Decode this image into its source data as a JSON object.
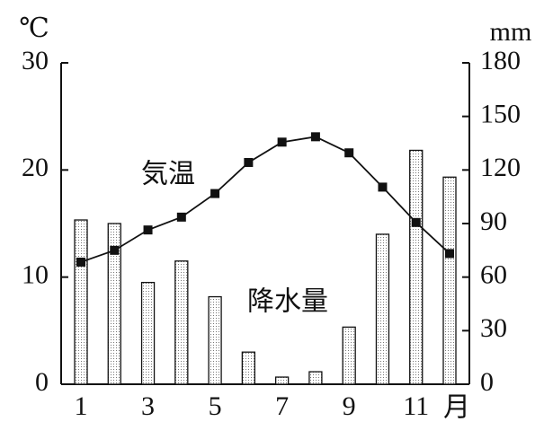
{
  "chart_data": {
    "type": "bar-line",
    "categories": [
      "1",
      null,
      "3",
      null,
      "5",
      null,
      "7",
      null,
      "9",
      null,
      "11",
      null
    ],
    "x_label": "月",
    "y_label": "℃",
    "y2_label": "mm",
    "series": [
      {
        "name": "降水量",
        "type": "bar",
        "axis": "y2",
        "color": "#bbbbbb",
        "values": [
          92,
          90,
          57,
          69,
          49,
          18,
          4,
          7,
          32,
          84,
          131,
          116
        ]
      },
      {
        "name": "気温",
        "type": "line",
        "axis": "y",
        "color": "#111111",
        "values": [
          11.4,
          12.5,
          14.4,
          15.6,
          17.8,
          20.7,
          22.6,
          23.1,
          21.6,
          18.4,
          15.1,
          12.2
        ]
      }
    ],
    "ylim": [
      0,
      30
    ],
    "yticks": [
      0,
      10,
      20,
      30
    ],
    "y2lim": [
      0,
      180
    ],
    "y2ticks": [
      0,
      30,
      60,
      90,
      120,
      150,
      180
    ]
  }
}
